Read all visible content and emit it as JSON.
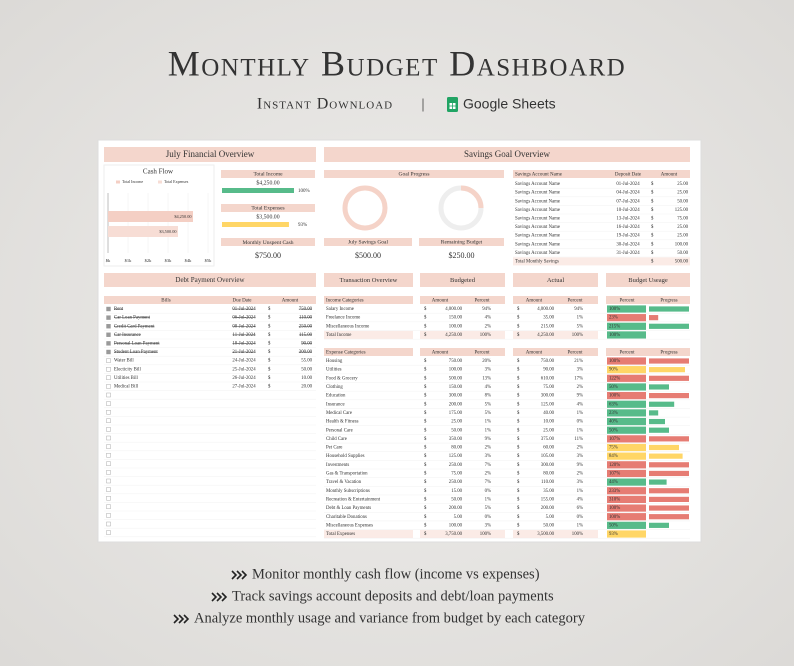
{
  "header": {
    "title": "Monthly Budget Dashboard",
    "subtitle": "Instant Download",
    "separator": "|",
    "brand": "Google Sheets"
  },
  "currency": "$",
  "financial_overview": {
    "title": "July Financial Overview",
    "cash_flow": {
      "type": "bar",
      "title": "Cash Flow",
      "series": [
        {
          "name": "Total Income",
          "color": "#f4cfc4",
          "value": 4250,
          "value_label": "$4,250.00"
        },
        {
          "name": "Total Expenses",
          "color": "#f7ddd5",
          "value": 3500,
          "value_label": "$3,500.00"
        }
      ],
      "xlim": [
        0,
        5000
      ],
      "xticks": [
        {
          "value": 0,
          "label": "$k"
        },
        {
          "value": 1000,
          "label": "$1k"
        },
        {
          "value": 2000,
          "label": "$2k"
        },
        {
          "value": 3000,
          "label": "$3k"
        },
        {
          "value": 4000,
          "label": "$4k"
        },
        {
          "value": 5000,
          "label": "$5k"
        }
      ],
      "grid": true
    },
    "total_income": {
      "label": "Total Income",
      "value": "$4,250.00",
      "bar": {
        "value": 100,
        "label": "100%"
      }
    },
    "total_expenses": {
      "label": "Total Expenses",
      "value": "$3,500.00",
      "bar": {
        "value": 93,
        "label": "93%"
      }
    },
    "unspent": {
      "label": "Monthly Unspent Cash",
      "value": "$750.00"
    }
  },
  "savings_goal": {
    "title": "Savings Goal Overview",
    "goal_progress": "Goal Progress",
    "goal": {
      "label": "July Savings Goal",
      "value": "$500.00"
    },
    "remaining": {
      "label": "Remaining Budget",
      "value": "$250.00"
    },
    "table": {
      "headers": [
        "Savings Account Name",
        "Deposit Date",
        "Amount"
      ],
      "rows": [
        [
          "Savings Account Name",
          "01-Jul-2024",
          "25.00"
        ],
        [
          "Savings Account Name",
          "04-Jul-2024",
          "25.00"
        ],
        [
          "Savings Account Name",
          "07-Jul-2024",
          "50.00"
        ],
        [
          "Savings Account Name",
          "10-Jul-2024",
          "125.00"
        ],
        [
          "Savings Account Name",
          "13-Jul-2024",
          "75.00"
        ],
        [
          "Savings Account Name",
          "16-Jul-2024",
          "25.00"
        ],
        [
          "Savings Account Name",
          "19-Jul-2024",
          "25.00"
        ],
        [
          "Savings Account Name",
          "30-Jul-2024",
          "100.00"
        ],
        [
          "Savings Account Name",
          "31-Jul-2024",
          "50.00"
        ]
      ],
      "total": {
        "label": "Total Monthly Savings",
        "amount": "500.00"
      }
    }
  },
  "debt": {
    "title": "Debt Payment Overview",
    "headers": [
      "Bills",
      "Due Date",
      "Amount"
    ],
    "rows": [
      {
        "bill": "Rent",
        "due": "01-Jul-2024",
        "amount": "750.00",
        "paid": true
      },
      {
        "bill": "Car Loan Payment",
        "due": "06-Jul-2024",
        "amount": "110.00",
        "paid": true
      },
      {
        "bill": "Credit Card Payment",
        "due": "08-Jul-2024",
        "amount": "250.00",
        "paid": true
      },
      {
        "bill": "Car Insurance",
        "due": "11-Jul-2024",
        "amount": "115.00",
        "paid": true
      },
      {
        "bill": "Personal Loan Payment",
        "due": "18-Jul-2024",
        "amount": "90.00",
        "paid": true
      },
      {
        "bill": "Student Loan Payment",
        "due": "21-Jul-2024",
        "amount": "300.00",
        "paid": true
      },
      {
        "bill": "Water Bill",
        "due": "24-Jul-2024",
        "amount": "55.00",
        "paid": false
      },
      {
        "bill": "Electicity Bill",
        "due": "25-Jul-2024",
        "amount": "50.00",
        "paid": false
      },
      {
        "bill": "Utilities Bill",
        "due": "26-Jul-2024",
        "amount": "10.00",
        "paid": false
      },
      {
        "bill": "Medical Bill",
        "due": "27-Jul-2024",
        "amount": "20.00",
        "paid": false
      }
    ]
  },
  "transactions": {
    "title": "Transaction Overview",
    "budgeted": "Budgeted",
    "actual": "Actual",
    "usage": "Budget Useage",
    "income": {
      "header": [
        "Income Categories",
        "Amount",
        "Percent",
        "Amount",
        "Percent",
        "Percent",
        "Progress"
      ],
      "rows": [
        {
          "name": "Salary Income",
          "budget": "4,000.00",
          "budget_pct": "94%",
          "actual": "4,000.00",
          "actual_pct": "94%",
          "usage": {
            "value": 100,
            "label": "100%"
          }
        },
        {
          "name": "Freelance Income",
          "budget": "150.00",
          "budget_pct": "4%",
          "actual": "35.00",
          "actual_pct": "1%",
          "usage": {
            "value": 23,
            "label": "23%"
          }
        },
        {
          "name": "Miscellaneous Income",
          "budget": "100.00",
          "budget_pct": "2%",
          "actual": "215.00",
          "actual_pct": "5%",
          "usage": {
            "value": 215,
            "label": "215%"
          }
        }
      ],
      "total": {
        "name": "Total Income",
        "budget": "4,250.00",
        "budget_pct": "100%",
        "actual": "4,250.00",
        "actual_pct": "100%",
        "usage": {
          "value": 100,
          "label": "100%"
        }
      }
    },
    "expenses": {
      "header": [
        "Expense Categories",
        "Amount",
        "Percent",
        "Amount",
        "Percent",
        "Percent",
        "Progress"
      ],
      "rows": [
        {
          "name": "Housing",
          "budget": "750.00",
          "budget_pct": "20%",
          "actual": "750.00",
          "actual_pct": "21%",
          "usage": {
            "value": 100,
            "label": "100%"
          }
        },
        {
          "name": "Utilities",
          "budget": "100.00",
          "budget_pct": "3%",
          "actual": "90.00",
          "actual_pct": "3%",
          "usage": {
            "value": 90,
            "label": "90%"
          }
        },
        {
          "name": "Food & Grocery",
          "budget": "500.00",
          "budget_pct": "13%",
          "actual": "610.00",
          "actual_pct": "17%",
          "usage": {
            "value": 122,
            "label": "122%"
          }
        },
        {
          "name": "Clothing",
          "budget": "150.00",
          "budget_pct": "4%",
          "actual": "75.00",
          "actual_pct": "2%",
          "usage": {
            "value": 50,
            "label": "50%"
          }
        },
        {
          "name": "Education",
          "budget": "300.00",
          "budget_pct": "8%",
          "actual": "300.00",
          "actual_pct": "9%",
          "usage": {
            "value": 100,
            "label": "100%"
          }
        },
        {
          "name": "Insurance",
          "budget": "200.00",
          "budget_pct": "5%",
          "actual": "125.00",
          "actual_pct": "4%",
          "usage": {
            "value": 63,
            "label": "63%"
          }
        },
        {
          "name": "Medical Care",
          "budget": "175.00",
          "budget_pct": "5%",
          "actual": "40.00",
          "actual_pct": "1%",
          "usage": {
            "value": 23,
            "label": "23%"
          }
        },
        {
          "name": "Health & Fitness",
          "budget": "25.00",
          "budget_pct": "1%",
          "actual": "10.00",
          "actual_pct": "0%",
          "usage": {
            "value": 40,
            "label": "40%"
          }
        },
        {
          "name": "Personal Care",
          "budget": "50.00",
          "budget_pct": "1%",
          "actual": "25.00",
          "actual_pct": "1%",
          "usage": {
            "value": 50,
            "label": "50%"
          }
        },
        {
          "name": "Child Care",
          "budget": "350.00",
          "budget_pct": "9%",
          "actual": "375.00",
          "actual_pct": "11%",
          "usage": {
            "value": 107,
            "label": "107%"
          }
        },
        {
          "name": "Pet Care",
          "budget": "80.00",
          "budget_pct": "2%",
          "actual": "60.00",
          "actual_pct": "2%",
          "usage": {
            "value": 75,
            "label": "75%"
          }
        },
        {
          "name": "Household Supplies",
          "budget": "125.00",
          "budget_pct": "3%",
          "actual": "105.00",
          "actual_pct": "3%",
          "usage": {
            "value": 84,
            "label": "84%"
          }
        },
        {
          "name": "Investments",
          "budget": "250.00",
          "budget_pct": "7%",
          "actual": "300.00",
          "actual_pct": "9%",
          "usage": {
            "value": 120,
            "label": "120%"
          }
        },
        {
          "name": "Gas & Transportation",
          "budget": "75.00",
          "budget_pct": "2%",
          "actual": "80.00",
          "actual_pct": "2%",
          "usage": {
            "value": 107,
            "label": "107%"
          }
        },
        {
          "name": "Travel & Vacation",
          "budget": "250.00",
          "budget_pct": "7%",
          "actual": "110.00",
          "actual_pct": "3%",
          "usage": {
            "value": 44,
            "label": "44%"
          }
        },
        {
          "name": "Monthly Subscriptions",
          "budget": "15.00",
          "budget_pct": "0%",
          "actual": "35.00",
          "actual_pct": "1%",
          "usage": {
            "value": 233,
            "label": "233%"
          }
        },
        {
          "name": "Recreation & Entertainment",
          "budget": "50.00",
          "budget_pct": "1%",
          "actual": "155.00",
          "actual_pct": "4%",
          "usage": {
            "value": 310,
            "label": "310%"
          }
        },
        {
          "name": "Debt & Loan Payments",
          "budget": "200.00",
          "budget_pct": "5%",
          "actual": "200.00",
          "actual_pct": "6%",
          "usage": {
            "value": 100,
            "label": "100%"
          }
        },
        {
          "name": "Charitable Donations",
          "budget": "5.00",
          "budget_pct": "0%",
          "actual": "5.00",
          "actual_pct": "0%",
          "usage": {
            "value": 100,
            "label": "100%"
          }
        },
        {
          "name": "Miscellaneous Expenses",
          "budget": "100.00",
          "budget_pct": "3%",
          "actual": "50.00",
          "actual_pct": "1%",
          "usage": {
            "value": 50,
            "label": "50%"
          }
        }
      ],
      "total": {
        "name": "Total Expenses",
        "budget": "3,750.00",
        "budget_pct": "100%",
        "actual": "3,500.00",
        "actual_pct": "100%",
        "usage": {
          "value": 93,
          "label": "93%"
        }
      }
    }
  },
  "bullets": [
    "Monitor monthly cash flow (income vs expenses)",
    "Track savings account deposits and debt/loan payments",
    "Analyze monthly usage and variance from budget by each category"
  ]
}
